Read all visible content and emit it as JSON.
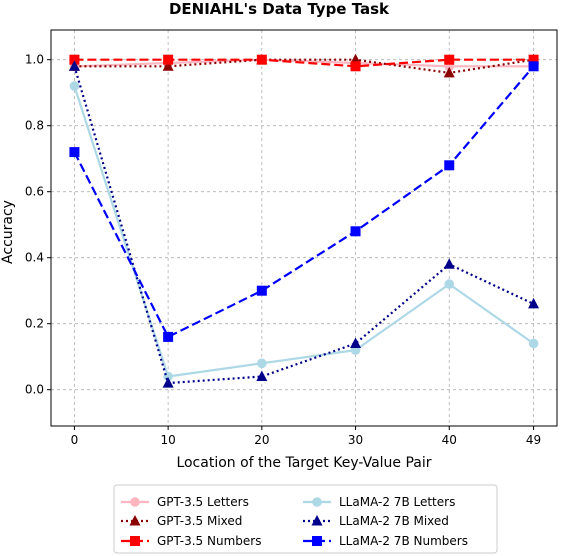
{
  "chart_data": {
    "type": "line",
    "title": "DENIAHL's Data Type Task",
    "xlabel": "Location of the Target Key-Value Pair",
    "ylabel": "Accuracy",
    "x": [
      0,
      10,
      20,
      30,
      40,
      49
    ],
    "x_ticks": [
      "0",
      "10",
      "20",
      "30",
      "40",
      "49"
    ],
    "y_ticks": [
      "0.0",
      "0.2",
      "0.4",
      "0.6",
      "0.8",
      "1.0"
    ],
    "xlim": [
      -2.5,
      51.5
    ],
    "ylim": [
      -0.11,
      1.09
    ],
    "grid": true,
    "legend_position": "bottom",
    "series": [
      {
        "name": "GPT-3.5 Letters",
        "values": [
          0.98,
          0.99,
          1.0,
          0.99,
          0.98,
          0.98
        ],
        "color": "#ffb6c1",
        "linestyle": "solid",
        "marker": "circle"
      },
      {
        "name": "GPT-3.5 Mixed",
        "values": [
          0.98,
          0.98,
          1.0,
          1.0,
          0.96,
          1.0
        ],
        "color": "#8b0000",
        "linestyle": "dotted",
        "marker": "triangle"
      },
      {
        "name": "GPT-3.5 Numbers",
        "values": [
          1.0,
          1.0,
          1.0,
          0.98,
          1.0,
          1.0
        ],
        "color": "#ff0000",
        "linestyle": "dashed",
        "marker": "square"
      },
      {
        "name": "LLaMA-2 7B Letters",
        "values": [
          0.92,
          0.04,
          0.08,
          0.12,
          0.32,
          0.14
        ],
        "color": "#add8e6",
        "linestyle": "solid",
        "marker": "circle"
      },
      {
        "name": "LLaMA-2 7B Mixed",
        "values": [
          0.98,
          0.02,
          0.04,
          0.14,
          0.38,
          0.26
        ],
        "color": "#00008b",
        "linestyle": "dotted",
        "marker": "triangle"
      },
      {
        "name": "LLaMA-2 7B Numbers",
        "values": [
          0.72,
          0.16,
          0.3,
          0.48,
          0.68,
          0.98
        ],
        "color": "#0000ff",
        "linestyle": "dashed",
        "marker": "square"
      }
    ]
  }
}
